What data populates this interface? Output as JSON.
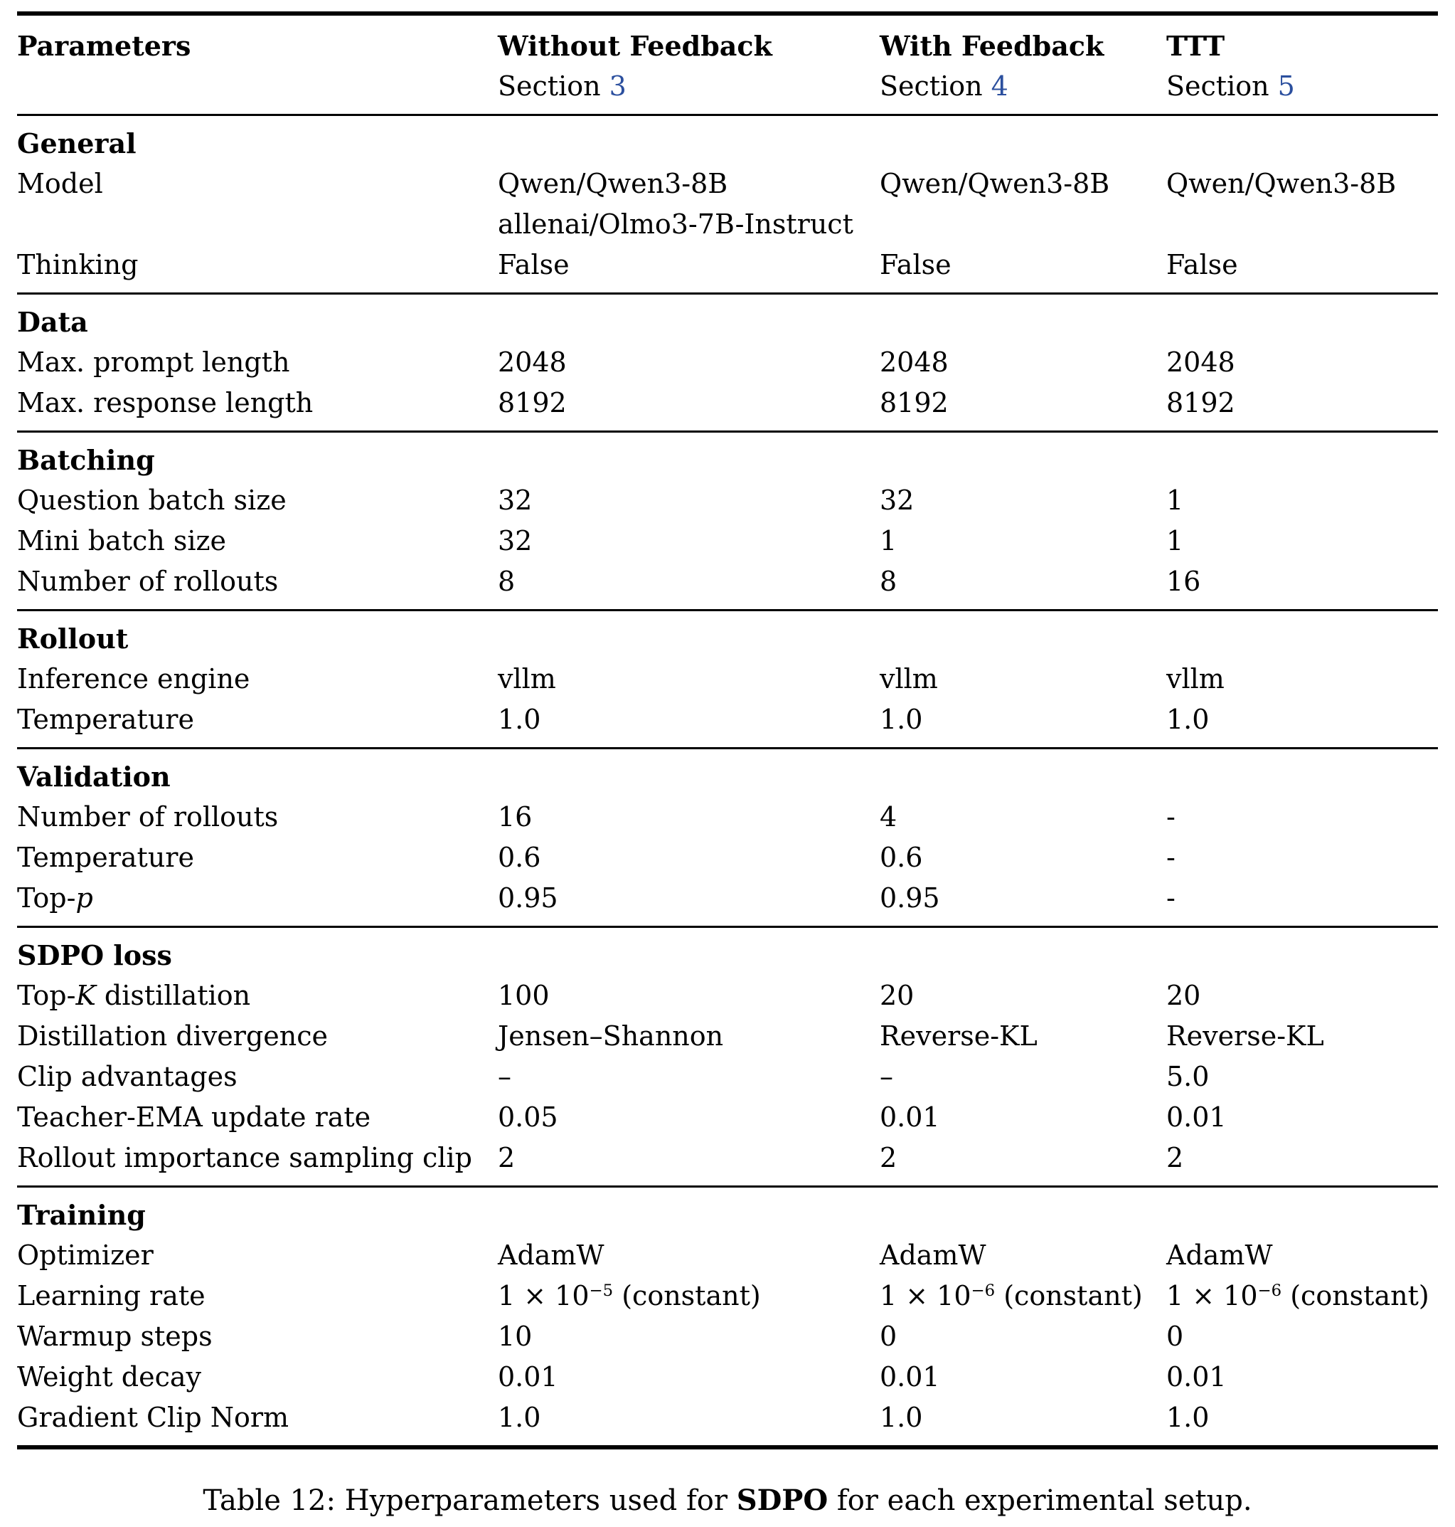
{
  "colors": {
    "section_link": "#2b4f9e"
  },
  "header": {
    "col1": "Parameters",
    "cols": [
      {
        "title": "Without Feedback",
        "subtitle_pre": "Section ",
        "subtitle_num": "3"
      },
      {
        "title": "With Feedback",
        "subtitle_pre": "Section ",
        "subtitle_num": "4"
      },
      {
        "title": "TTT",
        "subtitle_pre": "Section ",
        "subtitle_num": "5"
      }
    ]
  },
  "sections": [
    {
      "name": "General",
      "rows": [
        {
          "label": [
            {
              "t": "Model"
            }
          ],
          "cells": [
            [
              {
                "t": "Qwen/Qwen3-8B"
              },
              {
                "br": true
              },
              {
                "t": "allenai/Olmo3-7B-Instruct"
              }
            ],
            [
              {
                "t": "Qwen/Qwen3-8B"
              }
            ],
            [
              {
                "t": "Qwen/Qwen3-8B"
              }
            ]
          ]
        },
        {
          "label": [
            {
              "t": "Thinking"
            }
          ],
          "cells": [
            [
              {
                "t": "False"
              }
            ],
            [
              {
                "t": "False"
              }
            ],
            [
              {
                "t": "False"
              }
            ]
          ]
        }
      ]
    },
    {
      "name": "Data",
      "rows": [
        {
          "label": [
            {
              "t": "Max. prompt length"
            }
          ],
          "cells": [
            [
              {
                "t": "2048"
              }
            ],
            [
              {
                "t": "2048"
              }
            ],
            [
              {
                "t": "2048"
              }
            ]
          ]
        },
        {
          "label": [
            {
              "t": "Max. response length"
            }
          ],
          "cells": [
            [
              {
                "t": "8192"
              }
            ],
            [
              {
                "t": "8192"
              }
            ],
            [
              {
                "t": "8192"
              }
            ]
          ]
        }
      ]
    },
    {
      "name": "Batching",
      "rows": [
        {
          "label": [
            {
              "t": "Question batch size"
            }
          ],
          "cells": [
            [
              {
                "t": "32"
              }
            ],
            [
              {
                "t": "32"
              }
            ],
            [
              {
                "t": "1"
              }
            ]
          ]
        },
        {
          "label": [
            {
              "t": "Mini batch size"
            }
          ],
          "cells": [
            [
              {
                "t": "32"
              }
            ],
            [
              {
                "t": "1"
              }
            ],
            [
              {
                "t": "1"
              }
            ]
          ]
        },
        {
          "label": [
            {
              "t": "Number of rollouts"
            }
          ],
          "cells": [
            [
              {
                "t": "8"
              }
            ],
            [
              {
                "t": "8"
              }
            ],
            [
              {
                "t": "16"
              }
            ]
          ]
        }
      ]
    },
    {
      "name": "Rollout",
      "rows": [
        {
          "label": [
            {
              "t": "Inference engine"
            }
          ],
          "cells": [
            [
              {
                "t": "vllm"
              }
            ],
            [
              {
                "t": "vllm"
              }
            ],
            [
              {
                "t": "vllm"
              }
            ]
          ]
        },
        {
          "label": [
            {
              "t": "Temperature"
            }
          ],
          "cells": [
            [
              {
                "t": "1.0"
              }
            ],
            [
              {
                "t": "1.0"
              }
            ],
            [
              {
                "t": "1.0"
              }
            ]
          ]
        }
      ]
    },
    {
      "name": "Validation",
      "rows": [
        {
          "label": [
            {
              "t": "Number of rollouts"
            }
          ],
          "cells": [
            [
              {
                "t": "16"
              }
            ],
            [
              {
                "t": "4"
              }
            ],
            [
              {
                "t": "-"
              }
            ]
          ]
        },
        {
          "label": [
            {
              "t": "Temperature"
            }
          ],
          "cells": [
            [
              {
                "t": "0.6"
              }
            ],
            [
              {
                "t": "0.6"
              }
            ],
            [
              {
                "t": "-"
              }
            ]
          ]
        },
        {
          "label": [
            {
              "t": "Top-"
            },
            {
              "i": "p"
            }
          ],
          "cells": [
            [
              {
                "t": "0.95"
              }
            ],
            [
              {
                "t": "0.95"
              }
            ],
            [
              {
                "t": "-"
              }
            ]
          ]
        }
      ]
    },
    {
      "name": "SDPO loss",
      "rows": [
        {
          "label": [
            {
              "t": "Top-"
            },
            {
              "i": "K"
            },
            {
              "t": " distillation"
            }
          ],
          "cells": [
            [
              {
                "t": "100"
              }
            ],
            [
              {
                "t": "20"
              }
            ],
            [
              {
                "t": "20"
              }
            ]
          ]
        },
        {
          "label": [
            {
              "t": "Distillation divergence"
            }
          ],
          "cells": [
            [
              {
                "t": "Jensen–Shannon"
              }
            ],
            [
              {
                "t": "Reverse-KL"
              }
            ],
            [
              {
                "t": "Reverse-KL"
              }
            ]
          ]
        },
        {
          "label": [
            {
              "t": "Clip advantages"
            }
          ],
          "cells": [
            [
              {
                "t": "–"
              }
            ],
            [
              {
                "t": "–"
              }
            ],
            [
              {
                "t": "5.0"
              }
            ]
          ]
        },
        {
          "label": [
            {
              "t": "Teacher-EMA update rate"
            }
          ],
          "cells": [
            [
              {
                "t": "0.05"
              }
            ],
            [
              {
                "t": "0.01"
              }
            ],
            [
              {
                "t": "0.01"
              }
            ]
          ]
        },
        {
          "label": [
            {
              "t": "Rollout importance sampling clip"
            }
          ],
          "cells": [
            [
              {
                "t": "2"
              }
            ],
            [
              {
                "t": "2"
              }
            ],
            [
              {
                "t": "2"
              }
            ]
          ]
        }
      ]
    },
    {
      "name": "Training",
      "rows": [
        {
          "label": [
            {
              "t": "Optimizer"
            }
          ],
          "cells": [
            [
              {
                "t": "AdamW"
              }
            ],
            [
              {
                "t": "AdamW"
              }
            ],
            [
              {
                "t": "AdamW"
              }
            ]
          ]
        },
        {
          "label": [
            {
              "t": "Learning rate"
            }
          ],
          "cells": [
            [
              {
                "t": "1 × 10"
              },
              {
                "sup": "−5"
              },
              {
                "t": " (constant)"
              }
            ],
            [
              {
                "t": "1 × 10"
              },
              {
                "sup": "−6"
              },
              {
                "t": " (constant)"
              }
            ],
            [
              {
                "t": "1 × 10"
              },
              {
                "sup": "−6"
              },
              {
                "t": " (constant)"
              }
            ]
          ]
        },
        {
          "label": [
            {
              "t": "Warmup steps"
            }
          ],
          "cells": [
            [
              {
                "t": "10"
              }
            ],
            [
              {
                "t": "0"
              }
            ],
            [
              {
                "t": "0"
              }
            ]
          ]
        },
        {
          "label": [
            {
              "t": "Weight decay"
            }
          ],
          "cells": [
            [
              {
                "t": "0.01"
              }
            ],
            [
              {
                "t": "0.01"
              }
            ],
            [
              {
                "t": "0.01"
              }
            ]
          ]
        },
        {
          "label": [
            {
              "t": "Gradient Clip Norm"
            }
          ],
          "cells": [
            [
              {
                "t": "1.0"
              }
            ],
            [
              {
                "t": "1.0"
              }
            ],
            [
              {
                "t": "1.0"
              }
            ]
          ]
        }
      ]
    }
  ],
  "caption": {
    "pre": "Table 12: Hyperparameters used for ",
    "bold": "SDPO",
    "post": " for each experimental setup."
  }
}
